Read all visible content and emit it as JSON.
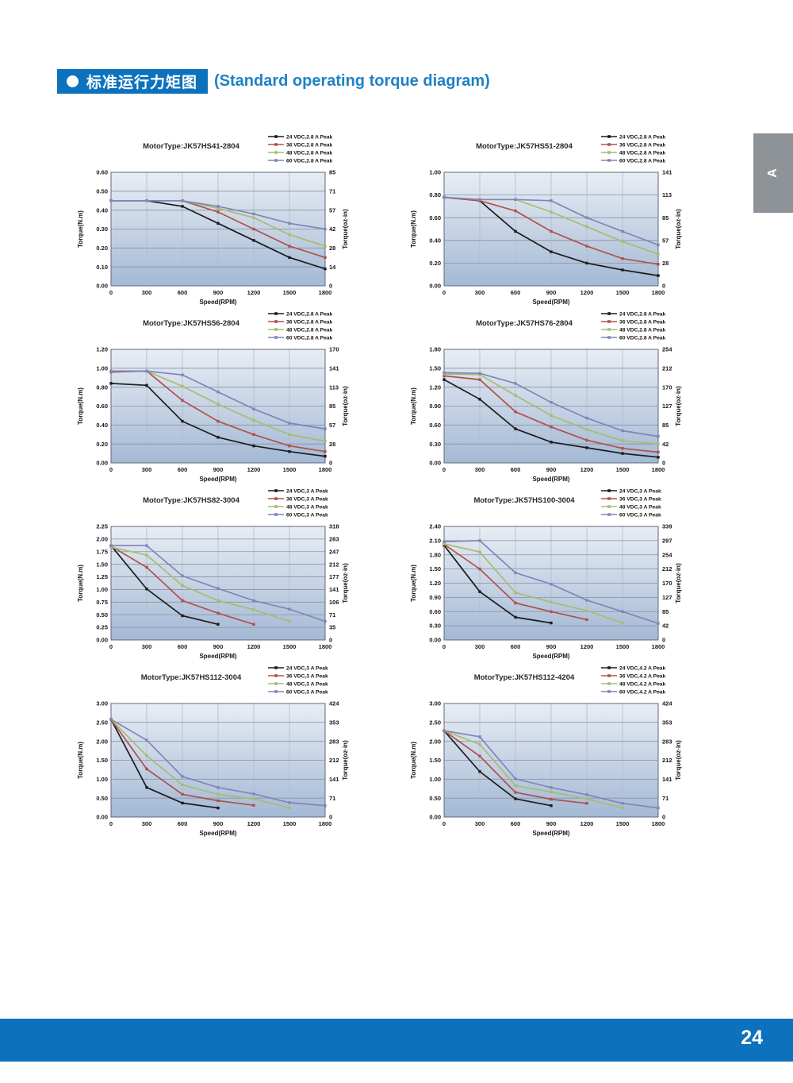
{
  "header": {
    "badge_text": "标准运行力矩图",
    "subtitle": "(Standard operating torque diagram)",
    "accent_color": "#0d72bd"
  },
  "side_tab": {
    "label": "A"
  },
  "footer": {
    "page_number": "24",
    "bar_color": "#0d72bd"
  },
  "chart_defaults": {
    "x_ticks": [
      0,
      300,
      600,
      900,
      1200,
      1500,
      1800
    ],
    "xlabel": "Speed(RPM)",
    "ylabel_left": "Torque(N.m)",
    "ylabel_right": "Torque(oz·in)",
    "series_colors": [
      "#1c1c1f",
      "#b0504c",
      "#a6bd6e",
      "#8184ba"
    ],
    "plot_gradient": [
      "#e7edf4",
      "#c3d1e3",
      "#a3b9d5"
    ],
    "grid_color_h": "#8a91a4",
    "grid_color_v": "#b4bac7",
    "border_color": "#62687a",
    "legend_position": "top-right",
    "grid": true
  },
  "chart_data": [
    {
      "type": "line",
      "title": "MotorType:JK57HS41-2804",
      "ylim": [
        0,
        0.6
      ],
      "y_step": 0.1,
      "y_right_ticks": [
        0,
        14,
        28,
        42,
        57,
        71,
        85
      ],
      "series": [
        {
          "name": "24 VDC,2.8 A Peak",
          "x": [
            0,
            300,
            600,
            900,
            1200,
            1500,
            1800
          ],
          "y": [
            0.45,
            0.45,
            0.42,
            0.33,
            0.24,
            0.15,
            0.09
          ]
        },
        {
          "name": "36 VDC,2.8 A Peak",
          "x": [
            0,
            300,
            600,
            900,
            1200,
            1500,
            1800
          ],
          "y": [
            0.45,
            0.45,
            0.45,
            0.39,
            0.3,
            0.21,
            0.15
          ]
        },
        {
          "name": "48 VDC,2.8 A Peak",
          "x": [
            0,
            300,
            600,
            900,
            1200,
            1500,
            1800
          ],
          "y": [
            0.45,
            0.45,
            0.45,
            0.41,
            0.36,
            0.27,
            0.21
          ]
        },
        {
          "name": "60 VDC,2.8 A Peak",
          "x": [
            0,
            300,
            600,
            900,
            1200,
            1500,
            1800
          ],
          "y": [
            0.45,
            0.45,
            0.45,
            0.42,
            0.38,
            0.33,
            0.3
          ]
        }
      ]
    },
    {
      "type": "line",
      "title": "MotorType:JK57HS51-2804",
      "ylim": [
        0,
        1.0
      ],
      "y_step": 0.2,
      "y_right_ticks": [
        0,
        28,
        57,
        85,
        113,
        141
      ],
      "series": [
        {
          "name": "24 VDC,2.8 A Peak",
          "x": [
            0,
            300,
            600,
            900,
            1200,
            1500,
            1800
          ],
          "y": [
            0.78,
            0.75,
            0.48,
            0.3,
            0.2,
            0.14,
            0.09
          ]
        },
        {
          "name": "36 VDC,2.8 A Peak",
          "x": [
            0,
            300,
            600,
            900,
            1200,
            1500,
            1800
          ],
          "y": [
            0.78,
            0.75,
            0.66,
            0.48,
            0.35,
            0.24,
            0.19
          ]
        },
        {
          "name": "48 VDC,2.8 A Peak",
          "x": [
            0,
            300,
            600,
            900,
            1200,
            1500,
            1800
          ],
          "y": [
            0.78,
            0.76,
            0.76,
            0.65,
            0.52,
            0.39,
            0.28
          ]
        },
        {
          "name": "60 VDC,2.8 A Peak",
          "x": [
            0,
            300,
            600,
            900,
            1200,
            1500,
            1800
          ],
          "y": [
            0.78,
            0.76,
            0.76,
            0.75,
            0.6,
            0.48,
            0.36
          ]
        }
      ]
    },
    {
      "type": "line",
      "title": "MotorType:JK57HS56-2804",
      "ylim": [
        0,
        1.2
      ],
      "y_step": 0.2,
      "y_right_ticks": [
        0,
        28,
        57,
        85,
        113,
        141,
        170
      ],
      "series": [
        {
          "name": "24 VDC,2.8 A Peak",
          "x": [
            0,
            300,
            600,
            900,
            1200,
            1500,
            1800
          ],
          "y": [
            0.84,
            0.82,
            0.44,
            0.27,
            0.18,
            0.12,
            0.07
          ]
        },
        {
          "name": "36 VDC,2.8 A Peak",
          "x": [
            0,
            300,
            600,
            900,
            1200,
            1500,
            1800
          ],
          "y": [
            0.96,
            0.97,
            0.66,
            0.44,
            0.3,
            0.18,
            0.12
          ]
        },
        {
          "name": "48 VDC,2.8 A Peak",
          "x": [
            0,
            300,
            600,
            900,
            1200,
            1500,
            1800
          ],
          "y": [
            0.97,
            0.97,
            0.81,
            0.62,
            0.45,
            0.3,
            0.23
          ]
        },
        {
          "name": "60 VDC,2.8 A Peak",
          "x": [
            0,
            300,
            600,
            900,
            1200,
            1500,
            1800
          ],
          "y": [
            0.97,
            0.97,
            0.93,
            0.75,
            0.57,
            0.42,
            0.36
          ]
        }
      ]
    },
    {
      "type": "line",
      "title": "MotorType:JK57HS76-2804",
      "ylim": [
        0,
        1.8
      ],
      "y_step": 0.3,
      "y_right_ticks": [
        0,
        42,
        85,
        127,
        170,
        212,
        254
      ],
      "series": [
        {
          "name": "24 VDC,2.8 A Peak",
          "x": [
            0,
            300,
            600,
            900,
            1200,
            1500,
            1800
          ],
          "y": [
            1.32,
            1.01,
            0.54,
            0.33,
            0.24,
            0.15,
            0.09
          ]
        },
        {
          "name": "36 VDC,2.8 A Peak",
          "x": [
            0,
            300,
            600,
            900,
            1200,
            1500,
            1800
          ],
          "y": [
            1.38,
            1.32,
            0.81,
            0.57,
            0.36,
            0.23,
            0.17
          ]
        },
        {
          "name": "48 VDC,2.8 A Peak",
          "x": [
            0,
            300,
            600,
            900,
            1200,
            1500,
            1800
          ],
          "y": [
            1.41,
            1.4,
            1.07,
            0.75,
            0.53,
            0.35,
            0.3
          ]
        },
        {
          "name": "60 VDC,2.8 A Peak",
          "x": [
            0,
            300,
            600,
            900,
            1200,
            1500,
            1800
          ],
          "y": [
            1.43,
            1.42,
            1.26,
            0.96,
            0.71,
            0.51,
            0.42
          ]
        }
      ]
    },
    {
      "type": "line",
      "title": "MotorType:JK57HS82-3004",
      "ylim": [
        0,
        2.25
      ],
      "y_step": 0.25,
      "y_right_ticks": [
        0,
        35,
        71,
        106,
        141,
        177,
        212,
        247,
        283,
        318
      ],
      "series": [
        {
          "name": "24 VDC,3 A Peak",
          "x": [
            0,
            300,
            600,
            900
          ],
          "y": [
            1.87,
            1.01,
            0.48,
            0.31
          ]
        },
        {
          "name": "36 VDC,3 A Peak",
          "x": [
            0,
            300,
            600,
            900,
            1200
          ],
          "y": [
            1.86,
            1.44,
            0.78,
            0.53,
            0.31
          ]
        },
        {
          "name": "48 VDC,3 A Peak",
          "x": [
            0,
            300,
            600,
            900,
            1200,
            1500
          ],
          "y": [
            1.84,
            1.68,
            1.08,
            0.78,
            0.6,
            0.37
          ]
        },
        {
          "name": "60 VDC,3 A Peak",
          "x": [
            0,
            300,
            600,
            900,
            1200,
            1500,
            1800
          ],
          "y": [
            1.87,
            1.87,
            1.27,
            1.02,
            0.78,
            0.61,
            0.37
          ]
        }
      ]
    },
    {
      "type": "line",
      "title": "MotorType:JK57HS100-3004",
      "ylim": [
        0,
        2.4
      ],
      "y_step": 0.3,
      "y_right_ticks": [
        0,
        42,
        85,
        127,
        170,
        212,
        254,
        297,
        339
      ],
      "series": [
        {
          "name": "24 VDC,3 A Peak",
          "x": [
            0,
            300,
            600,
            900
          ],
          "y": [
            2.0,
            1.02,
            0.48,
            0.36
          ]
        },
        {
          "name": "36 VDC,3 A Peak",
          "x": [
            0,
            300,
            600,
            900,
            1200
          ],
          "y": [
            2.02,
            1.5,
            0.78,
            0.6,
            0.43
          ]
        },
        {
          "name": "48 VDC,3 A Peak",
          "x": [
            0,
            300,
            600,
            900,
            1200,
            1500
          ],
          "y": [
            2.03,
            1.86,
            1.0,
            0.8,
            0.62,
            0.36
          ]
        },
        {
          "name": "60 VDC,3 A Peak",
          "x": [
            0,
            300,
            600,
            900,
            1200,
            1500,
            1800
          ],
          "y": [
            2.08,
            2.1,
            1.42,
            1.18,
            0.84,
            0.6,
            0.35
          ]
        }
      ]
    },
    {
      "type": "line",
      "title": "MotorType:JK57HS112-3004",
      "ylim": [
        0,
        3.0
      ],
      "y_step": 0.5,
      "y_right_ticks": [
        0,
        71,
        141,
        212,
        283,
        353,
        424
      ],
      "series": [
        {
          "name": "24 VDC,3 A Peak",
          "x": [
            0,
            300,
            600,
            900
          ],
          "y": [
            2.58,
            0.78,
            0.37,
            0.24
          ]
        },
        {
          "name": "36 VDC,3 A Peak",
          "x": [
            0,
            300,
            600,
            900,
            1200
          ],
          "y": [
            2.58,
            1.27,
            0.6,
            0.43,
            0.31
          ]
        },
        {
          "name": "48 VDC,3 A Peak",
          "x": [
            0,
            300,
            600,
            900,
            1200,
            1500
          ],
          "y": [
            2.58,
            1.62,
            0.85,
            0.6,
            0.48,
            0.24
          ]
        },
        {
          "name": "60 VDC,3 A Peak",
          "x": [
            0,
            300,
            600,
            900,
            1200,
            1500,
            1800
          ],
          "y": [
            2.58,
            2.03,
            1.07,
            0.78,
            0.61,
            0.38,
            0.3
          ]
        }
      ]
    },
    {
      "type": "line",
      "title": "MotorType:JK57HS112-4204",
      "ylim": [
        0,
        3.0
      ],
      "y_step": 0.5,
      "y_right_ticks": [
        0,
        71,
        141,
        212,
        283,
        353,
        424
      ],
      "series": [
        {
          "name": "24 VDC,4.2 A Peak",
          "x": [
            0,
            300,
            600,
            900
          ],
          "y": [
            2.28,
            1.2,
            0.48,
            0.3
          ]
        },
        {
          "name": "36 VDC,4.2 A Peak",
          "x": [
            0,
            300,
            600,
            900,
            1200
          ],
          "y": [
            2.28,
            1.61,
            0.65,
            0.47,
            0.36
          ]
        },
        {
          "name": "48 VDC,4.2 A Peak",
          "x": [
            0,
            300,
            600,
            900,
            1200,
            1500
          ],
          "y": [
            2.28,
            1.92,
            0.83,
            0.66,
            0.48,
            0.24
          ]
        },
        {
          "name": "60 VDC,4.2 A Peak",
          "x": [
            0,
            300,
            600,
            900,
            1200,
            1500,
            1800
          ],
          "y": [
            2.28,
            2.12,
            1.01,
            0.78,
            0.59,
            0.36,
            0.24
          ]
        }
      ]
    }
  ]
}
